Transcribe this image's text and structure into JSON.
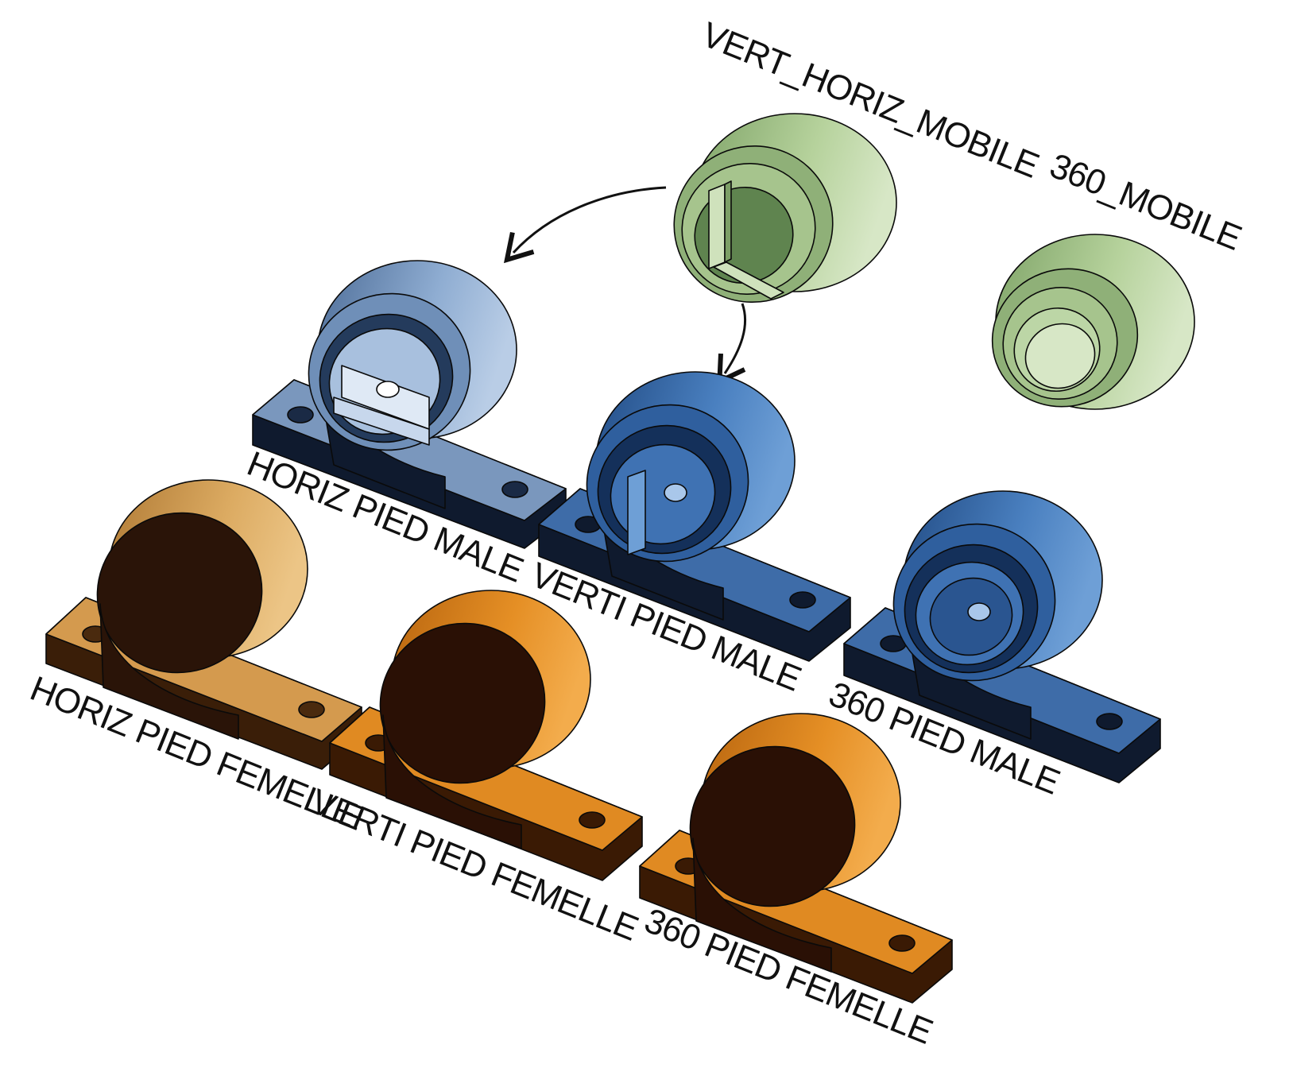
{
  "parts": {
    "vert_horiz_mobile": {
      "label": "VERT_HORIZ_MOBILE"
    },
    "mobile_360": {
      "label": "360_MOBILE"
    },
    "horiz_pied_male": {
      "label": "HORIZ PIED MALE"
    },
    "verti_pied_male": {
      "label": "VERTI PIED MALE"
    },
    "pied_male_360": {
      "label": "360 PIED MALE"
    },
    "horiz_pied_femelle": {
      "label": "HORIZ PIED FEMELLE"
    },
    "verti_pied_femelle": {
      "label": "VERTI PIED FEMELLE"
    },
    "pied_femelle_360": {
      "label": "360 PIED FEMELLE"
    }
  },
  "colors": {
    "mobile_green": "#a9c890",
    "male_light_blue": "#7f9fc8",
    "male_blue": "#3f72b3",
    "femelle_light_orange": "#d9a45a",
    "femelle_orange": "#e08a22",
    "dark_side": "#2a1408",
    "dark_navy": "#0f1a2e"
  }
}
